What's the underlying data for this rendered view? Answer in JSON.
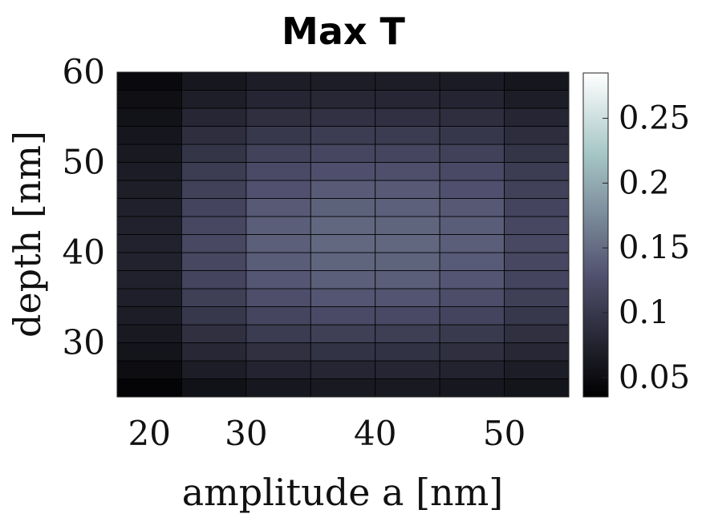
{
  "chart_data": {
    "type": "heatmap",
    "title": "Max T",
    "xlabel": "amplitude a [nm]",
    "ylabel": "depth [nm]",
    "x_ticks": [
      20,
      30,
      40,
      50
    ],
    "y_ticks": [
      30,
      40,
      50,
      60
    ],
    "x_tick_labels": [
      "20",
      "30",
      "40",
      "50"
    ],
    "y_tick_labels": [
      "30",
      "40",
      "50",
      "60"
    ],
    "xlim": [
      20,
      55
    ],
    "ylim": [
      24,
      60
    ],
    "x_centers": [
      22.5,
      30,
      40,
      50,
      57.5
    ],
    "x": [
      20,
      25,
      30,
      35,
      40,
      45,
      50,
      55
    ],
    "y": [
      24,
      26,
      28,
      30,
      32,
      34,
      36,
      38,
      40,
      42,
      44,
      46,
      48,
      50,
      52,
      54,
      56,
      58,
      60
    ],
    "colormap": "bone",
    "colorbar": {
      "range": [
        0.035,
        0.285
      ],
      "ticks": [
        0.05,
        0.1,
        0.15,
        0.2,
        0.25
      ],
      "tick_labels": [
        "0.05",
        "0.1",
        "0.15",
        "0.2",
        "0.25"
      ]
    },
    "z": [
      [
        0.04,
        0.055,
        0.062,
        0.064,
        0.064,
        0.062,
        0.058
      ],
      [
        0.05,
        0.068,
        0.076,
        0.078,
        0.078,
        0.075,
        0.068
      ],
      [
        0.058,
        0.08,
        0.09,
        0.094,
        0.093,
        0.089,
        0.08
      ],
      [
        0.064,
        0.09,
        0.103,
        0.108,
        0.107,
        0.102,
        0.09
      ],
      [
        0.068,
        0.1,
        0.115,
        0.121,
        0.12,
        0.114,
        0.1
      ],
      [
        0.071,
        0.108,
        0.125,
        0.132,
        0.131,
        0.124,
        0.108
      ],
      [
        0.073,
        0.114,
        0.133,
        0.14,
        0.139,
        0.132,
        0.114
      ],
      [
        0.074,
        0.117,
        0.138,
        0.145,
        0.144,
        0.137,
        0.117
      ],
      [
        0.074,
        0.118,
        0.14,
        0.147,
        0.146,
        0.139,
        0.118
      ],
      [
        0.073,
        0.117,
        0.139,
        0.146,
        0.145,
        0.138,
        0.117
      ],
      [
        0.072,
        0.114,
        0.135,
        0.142,
        0.141,
        0.134,
        0.114
      ],
      [
        0.07,
        0.11,
        0.129,
        0.136,
        0.135,
        0.128,
        0.11
      ],
      [
        0.067,
        0.104,
        0.121,
        0.127,
        0.126,
        0.12,
        0.104
      ],
      [
        0.064,
        0.096,
        0.111,
        0.116,
        0.115,
        0.11,
        0.096
      ],
      [
        0.06,
        0.088,
        0.1,
        0.104,
        0.103,
        0.099,
        0.087
      ],
      [
        0.056,
        0.079,
        0.089,
        0.092,
        0.091,
        0.088,
        0.078
      ],
      [
        0.052,
        0.07,
        0.078,
        0.08,
        0.079,
        0.077,
        0.069
      ],
      [
        0.047,
        0.062,
        0.068,
        0.069,
        0.068,
        0.066,
        0.06
      ]
    ]
  }
}
